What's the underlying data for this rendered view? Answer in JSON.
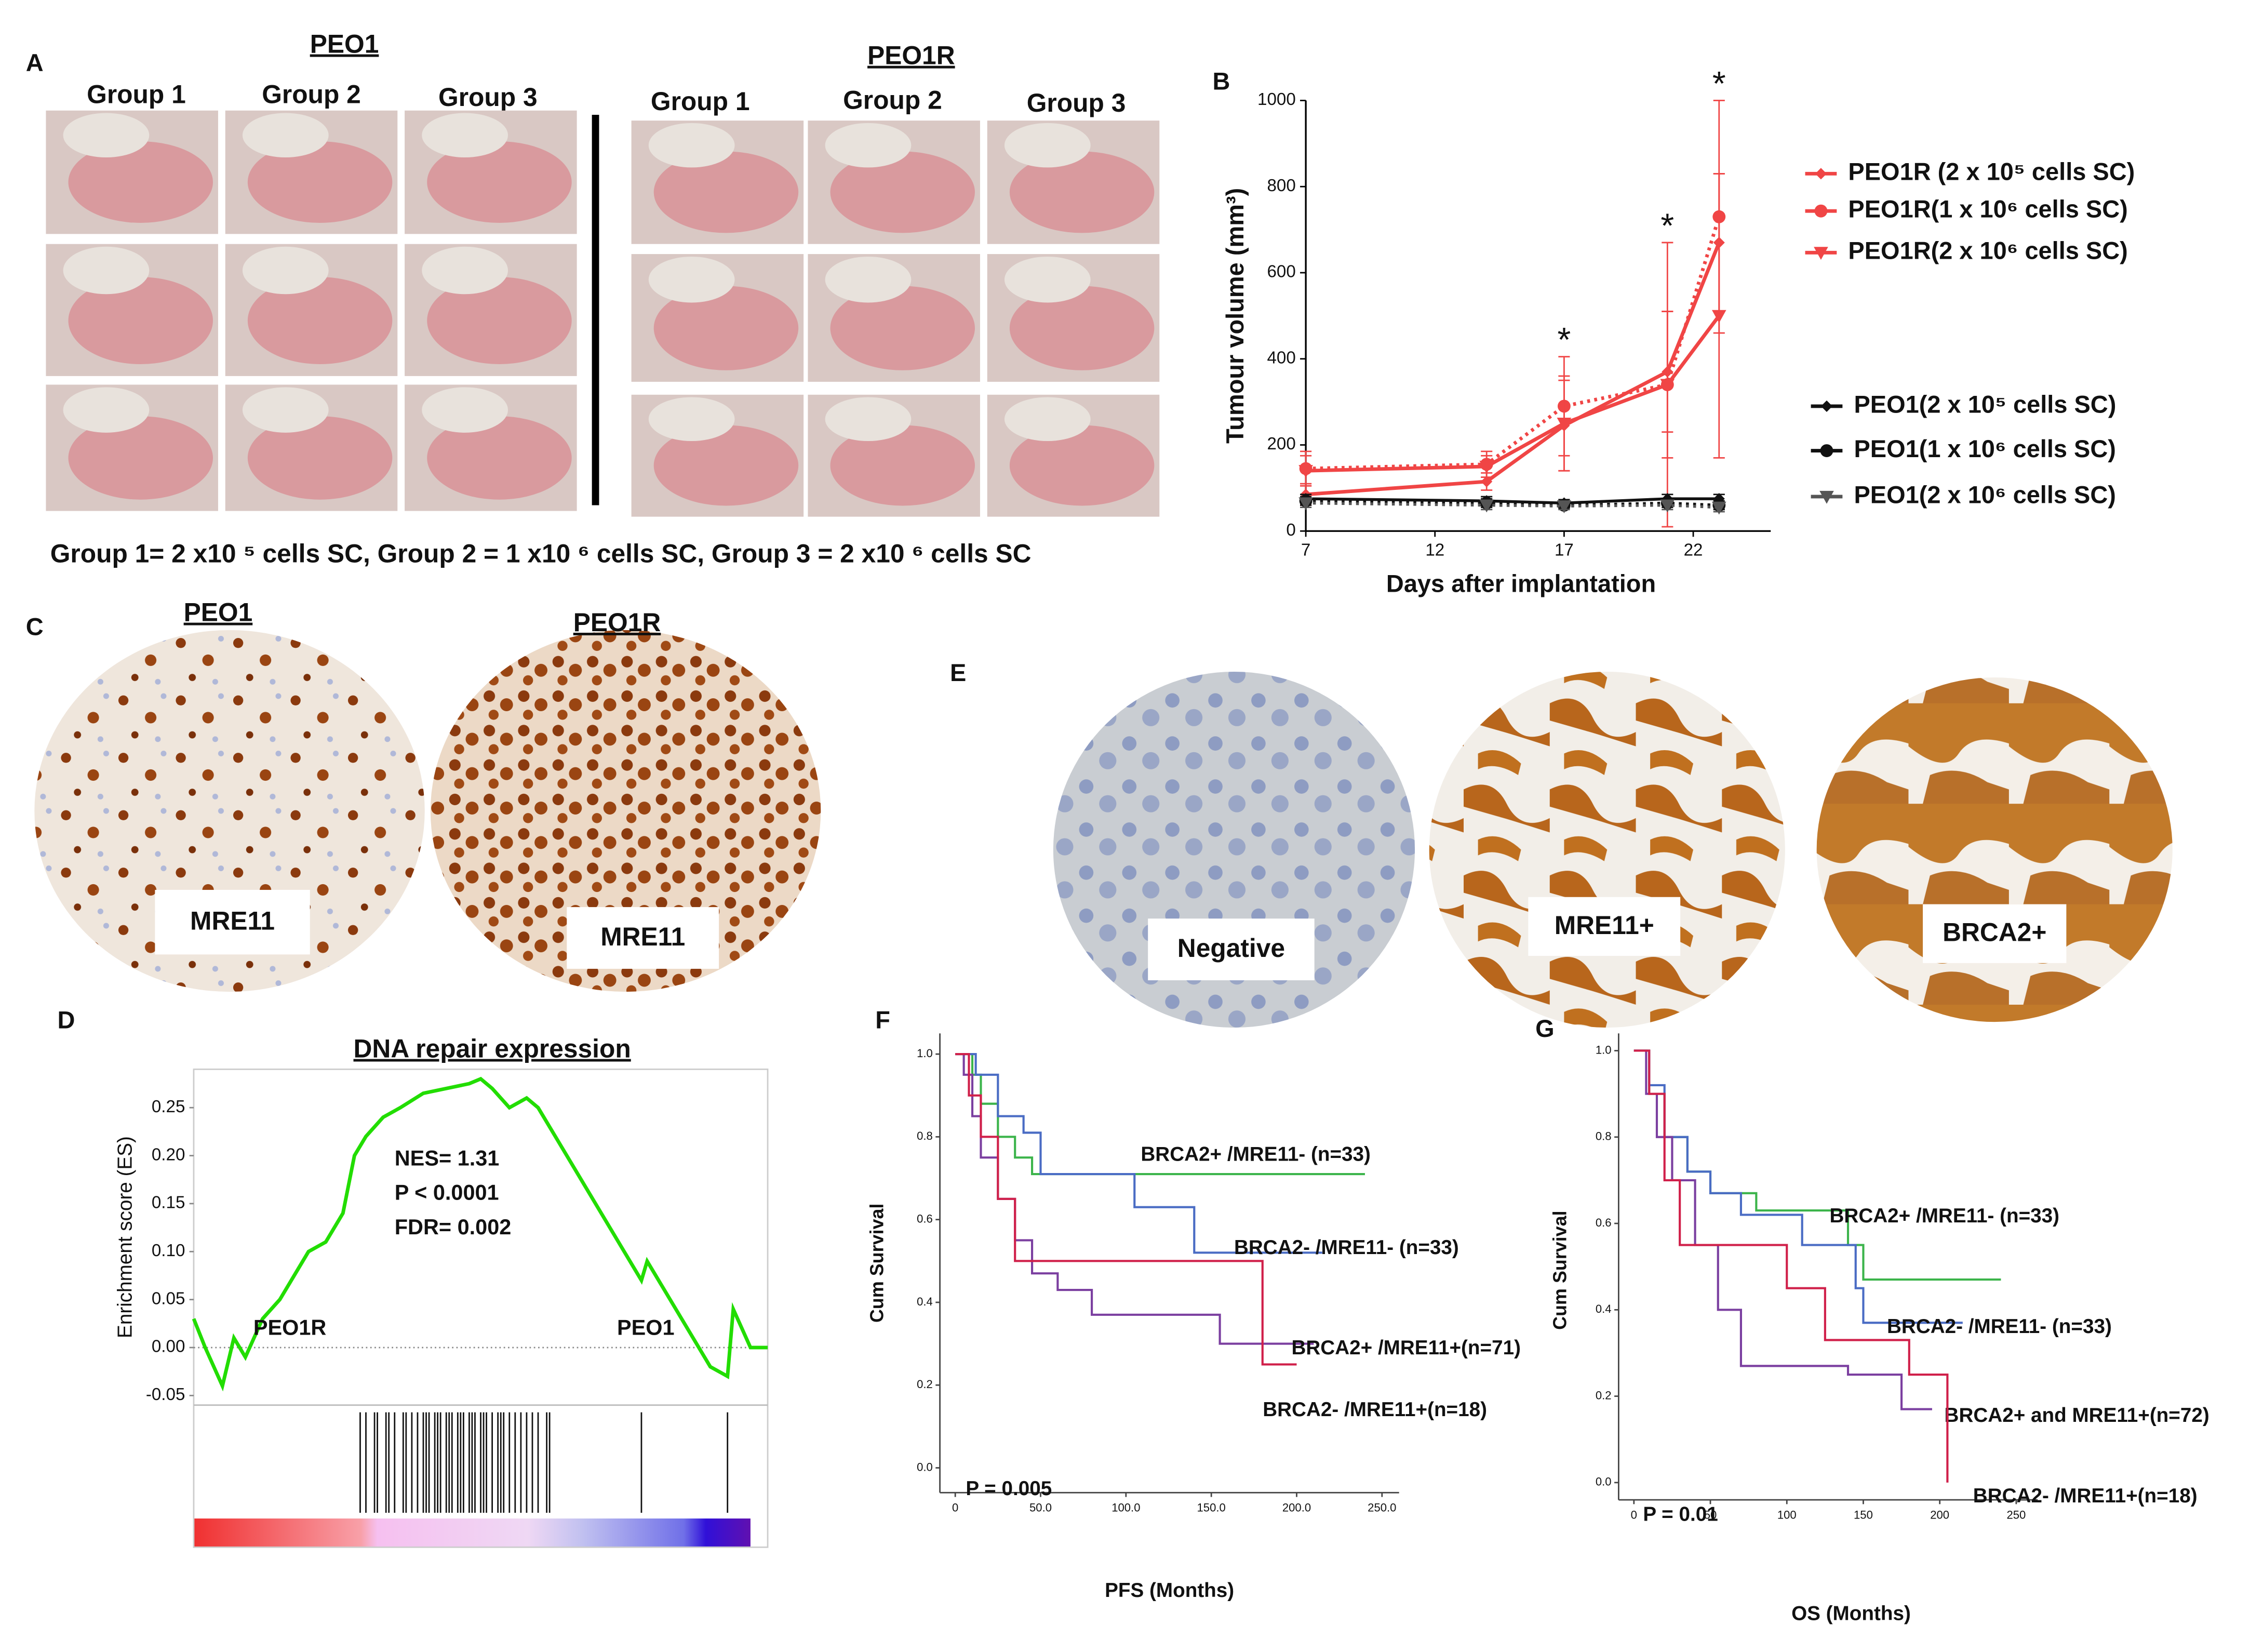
{
  "panel_letters": [
    "A",
    "B",
    "C",
    "D",
    "E",
    "F",
    "G"
  ],
  "panel_a": {
    "headers": [
      "PEO1",
      "PEO1R"
    ],
    "groups": [
      "Group 1",
      "Group 2",
      "Group 3"
    ],
    "caption": "Group 1= 2 x10 ⁵ cells SC, Group 2 = 1 x10 ⁶ cells SC, Group 3 = 2 x10 ⁶ cells SC"
  },
  "panel_c": {
    "headers": [
      "PEO1",
      "PEO1R"
    ],
    "labels": [
      "MRE11",
      "MRE11"
    ]
  },
  "panel_e": {
    "labels": [
      "Negative",
      "MRE11+",
      "BRCA2+"
    ]
  },
  "chart_data": [
    {
      "type": "line",
      "ylabel": "Tumour volume (mm³)",
      "xlabel": "Days after implantation",
      "x": [
        7,
        14,
        17,
        21,
        23
      ],
      "xlim": [
        7,
        25
      ],
      "xticks": [
        7,
        12,
        17,
        22
      ],
      "ylim": [
        0,
        1000
      ],
      "yticks": [
        0,
        200,
        400,
        600,
        800,
        1000
      ],
      "series": [
        {
          "name": "PEO1R (2 x 10⁵ cells SC)",
          "color": "#f04545",
          "marker": "diamond",
          "style": "solid",
          "values": [
            85,
            115,
            245,
            370,
            670
          ],
          "errors": [
            25,
            20,
            105,
            140,
            160
          ]
        },
        {
          "name": "PEO1R(1 x 10⁶ cells SC)",
          "color": "#f04545",
          "marker": "circle",
          "style": "dotted",
          "values": [
            145,
            155,
            290,
            340,
            730
          ],
          "errors": [
            40,
            30,
            115,
            330,
            270
          ]
        },
        {
          "name": "PEO1R(2 x 10⁶ cells SC)",
          "color": "#f04545",
          "marker": "triangle",
          "style": "solid",
          "values": [
            140,
            150,
            250,
            340,
            500
          ],
          "errors": [
            35,
            25,
            110,
            170,
            330
          ]
        },
        {
          "name": "PEO1(2 x 10⁵ cells SC)",
          "color": "#111111",
          "marker": "diamond",
          "style": "solid",
          "values": [
            75,
            70,
            65,
            75,
            75
          ],
          "errors": [
            10,
            10,
            8,
            10,
            10
          ]
        },
        {
          "name": "PEO1(1 x 10⁶ cells SC)",
          "color": "#111111",
          "marker": "circle",
          "style": "dotted",
          "values": [
            70,
            65,
            60,
            65,
            60
          ],
          "errors": [
            10,
            10,
            8,
            10,
            10
          ]
        },
        {
          "name": "PEO1(2 x 10⁶ cells SC)",
          "color": "#555555",
          "marker": "triangle",
          "style": "dotted",
          "values": [
            65,
            60,
            58,
            60,
            55
          ],
          "errors": [
            10,
            10,
            8,
            10,
            10
          ]
        }
      ],
      "annotations": [
        {
          "x": 17,
          "text": "*"
        },
        {
          "x": 21,
          "text": "*"
        },
        {
          "x": 23,
          "text": "*"
        }
      ]
    },
    {
      "type": "enrichment",
      "title": "DNA repair expression",
      "ylabel": "Enrichment score (ES)",
      "color": "#22dd00",
      "x": [
        0,
        2,
        5,
        7,
        9,
        12,
        15,
        18,
        20,
        23,
        26,
        28,
        30,
        33,
        36,
        40,
        44,
        48,
        50,
        52,
        55,
        58,
        60,
        65,
        70,
        75,
        78,
        79,
        85,
        90,
        93,
        94,
        97,
        100
      ],
      "values": [
        0.03,
        0,
        -0.04,
        0.01,
        -0.01,
        0.03,
        0.05,
        0.08,
        0.1,
        0.11,
        0.14,
        0.2,
        0.22,
        0.24,
        0.25,
        0.265,
        0.27,
        0.275,
        0.28,
        0.27,
        0.25,
        0.26,
        0.25,
        0.2,
        0.15,
        0.1,
        0.07,
        0.09,
        0.03,
        -0.02,
        -0.03,
        0.04,
        0,
        0
      ],
      "xlim": [
        0,
        100
      ],
      "ylim": [
        -0.06,
        0.29
      ],
      "yticks": [
        -0.05,
        {
          "value": 0,
          "label": "0.00"
        },
        0.05,
        {
          "value": 0.1,
          "label": "0.10"
        },
        0.15,
        {
          "value": 0.2,
          "label": "0.20"
        },
        0.25
      ],
      "hits": [
        29,
        30,
        31.5,
        32,
        33.5,
        34,
        35,
        36.5,
        37,
        38,
        39,
        40,
        40.5,
        41,
        42,
        42.5,
        43,
        44,
        44.5,
        45,
        46,
        46.5,
        47,
        48,
        48.5,
        49,
        50,
        50.5,
        51,
        52,
        53,
        53.5,
        54,
        55,
        56,
        57,
        58,
        59,
        60,
        61.5,
        62,
        78,
        93
      ],
      "annotations": [
        "NES= 1.31",
        "P < 0.0001",
        "FDR= 0.002"
      ],
      "group_labels": [
        {
          "text": "PEO1R",
          "color": "#e82020"
        },
        {
          "text": "PEO1",
          "color": "#4a78c8"
        }
      ]
    },
    {
      "type": "step",
      "xlabel": "PFS  (Months)",
      "ylabel": "Cum Survival",
      "annotation": "P = 0.005",
      "xlim": [
        -9,
        260
      ],
      "xticks": [
        0,
        {
          "value": 50,
          "label": "50.0"
        },
        {
          "value": 100,
          "label": "100.0"
        },
        {
          "value": 150,
          "label": "150.0"
        },
        {
          "value": 200,
          "label": "200.0"
        },
        {
          "value": 250,
          "label": "250.0"
        }
      ],
      "ylim": [
        -0.06,
        1.05
      ],
      "yticks": [
        {
          "value": 0,
          "label": "0.0"
        },
        0.2,
        0.4,
        0.6,
        0.8,
        {
          "value": 1,
          "label": "1.0"
        }
      ],
      "series": [
        {
          "name": "BRCA2+ /MRE11- (n=33)",
          "color": "#3cb44b",
          "x": [
            0,
            10,
            15,
            25,
            35,
            45,
            240
          ],
          "values": [
            1,
            0.95,
            0.88,
            0.8,
            0.75,
            0.71,
            0.71
          ]
        },
        {
          "name": "BRCA2- /MRE11- (n=33)",
          "color": "#4a6cc4",
          "x": [
            0,
            12,
            25,
            40,
            50,
            105,
            140,
            215
          ],
          "values": [
            1,
            0.95,
            0.85,
            0.81,
            0.71,
            0.63,
            0.52,
            0.52
          ]
        },
        {
          "name": "BRCA2+ /MRE11+(n=71)",
          "color": "#7b3fa0",
          "x": [
            0,
            5,
            10,
            15,
            25,
            35,
            45,
            60,
            80,
            155,
            210
          ],
          "values": [
            1,
            0.95,
            0.85,
            0.75,
            0.65,
            0.55,
            0.47,
            0.43,
            0.37,
            0.3,
            0.3
          ]
        },
        {
          "name": "BRCA2- /MRE11+(n=18)",
          "color": "#d0204a",
          "x": [
            0,
            8,
            15,
            25,
            35,
            180,
            200
          ],
          "values": [
            1,
            0.9,
            0.8,
            0.65,
            0.5,
            0.25,
            0.25
          ]
        }
      ]
    },
    {
      "type": "step",
      "xlabel": "OS  (Months)",
      "ylabel": "Cum Survival",
      "annotation": "P = 0.01",
      "xlim": [
        -10,
        264
      ],
      "xticks": [
        0,
        50,
        100,
        150,
        200,
        250
      ],
      "ylim": [
        -0.04,
        1.04
      ],
      "yticks": [
        {
          "value": 0,
          "label": "0.0"
        },
        0.2,
        0.4,
        0.6,
        0.8,
        {
          "value": 1,
          "label": "1.0"
        }
      ],
      "series": [
        {
          "name": "BRCA2+ /MRE11- (n=33)",
          "color": "#3cb44b",
          "x": [
            0,
            10,
            20,
            35,
            50,
            80,
            140,
            150,
            240
          ],
          "values": [
            1,
            0.9,
            0.8,
            0.72,
            0.67,
            0.63,
            0.55,
            0.47,
            0.47
          ]
        },
        {
          "name": "BRCA2- /MRE11- (n=33)",
          "color": "#4a6cc4",
          "x": [
            0,
            10,
            20,
            35,
            50,
            70,
            110,
            145,
            150,
            215
          ],
          "values": [
            1,
            0.92,
            0.8,
            0.72,
            0.67,
            0.62,
            0.55,
            0.45,
            0.37,
            0.37
          ]
        },
        {
          "name": "BRCA2+  and MRE11+(n=72)",
          "color": "#7b3fa0",
          "x": [
            0,
            8,
            15,
            25,
            40,
            55,
            70,
            130,
            140,
            175,
            195
          ],
          "values": [
            1,
            0.9,
            0.8,
            0.7,
            0.55,
            0.4,
            0.27,
            0.27,
            0.25,
            0.17,
            0.17
          ]
        },
        {
          "name": "BRCA2- /MRE11+(n=18)",
          "color": "#d0204a",
          "x": [
            0,
            10,
            20,
            30,
            100,
            125,
            180,
            205,
            205
          ],
          "values": [
            1,
            0.9,
            0.7,
            0.55,
            0.45,
            0.33,
            0.25,
            0.17,
            0
          ]
        }
      ]
    }
  ]
}
